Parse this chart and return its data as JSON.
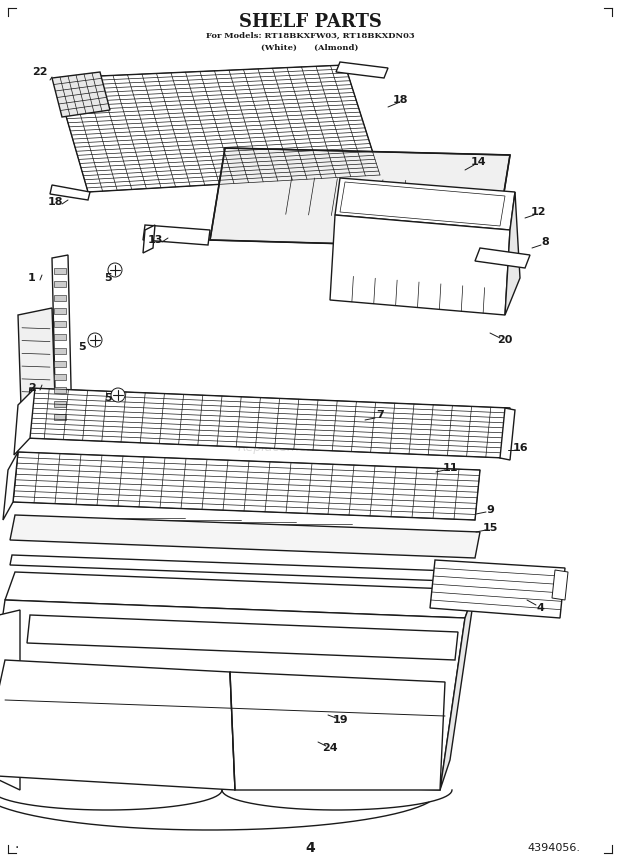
{
  "title": "SHELF PARTS",
  "subtitle1": "For Models: RT18BKXFW03, RT18BKXDN03",
  "subtitle2": "(White)      (Almond)",
  "page_number": "4",
  "doc_number": "4394056.",
  "bg_color": "#ffffff",
  "line_color": "#1a1a1a",
  "watermark": "ReplacementParts.com"
}
